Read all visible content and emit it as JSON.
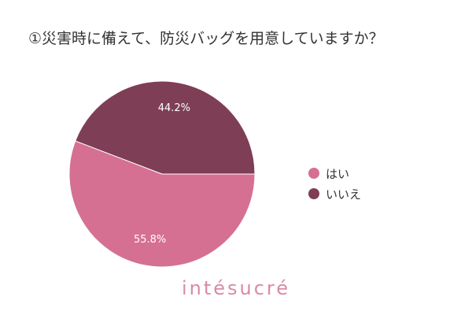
{
  "chart_data": {
    "type": "pie",
    "title": "①災害時に備えて、防災バッグを用意していますか？",
    "slices": [
      {
        "label": "はい",
        "value": 55.8,
        "display": "55.8%",
        "color": "#d57092"
      },
      {
        "label": "いいえ",
        "value": 44.2,
        "display": "44.2%",
        "color": "#7e3e56"
      }
    ],
    "legend_position": "right"
  },
  "brand": {
    "text": "intésucré"
  }
}
